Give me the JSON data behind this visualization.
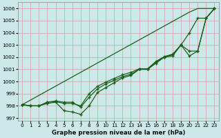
{
  "title": "Graphe pression niveau de la mer (hPa)",
  "xlabel_labels": [
    "0",
    "1",
    "2",
    "3",
    "4",
    "5",
    "6",
    "7",
    "8",
    "9",
    "10",
    "11",
    "12",
    "13",
    "14",
    "15",
    "16",
    "17",
    "18",
    "19",
    "20",
    "21",
    "22",
    "23"
  ],
  "ylim": [
    996.8,
    1006.5
  ],
  "yticks": [
    997,
    998,
    999,
    1000,
    1001,
    1002,
    1003,
    1004,
    1005,
    1006
  ],
  "bg_color": "#cce8e8",
  "grid_color_h": "#d4a0a0",
  "grid_color_v": "#d4a0a0",
  "line_color": "#1a5e1a",
  "line1": [
    998.1,
    998.0,
    998.0,
    998.2,
    998.3,
    997.6,
    997.5,
    997.3,
    998.0,
    999.1,
    999.5,
    999.9,
    1000.3,
    1000.5,
    1001.0,
    1001.0,
    1001.5,
    1002.0,
    1002.1,
    1003.0,
    1002.1,
    1002.5,
    1005.2,
    1006.0
  ],
  "line2": [
    998.1,
    998.0,
    998.0,
    998.3,
    998.4,
    998.3,
    998.3,
    997.9,
    998.7,
    999.4,
    999.8,
    1000.1,
    1000.4,
    1000.6,
    1001.0,
    1001.0,
    1001.6,
    1002.0,
    1002.2,
    1003.0,
    1002.5,
    1002.5,
    1005.2,
    1006.0
  ],
  "line3": [
    998.1,
    998.0,
    998.0,
    998.3,
    998.35,
    998.2,
    998.2,
    998.0,
    999.0,
    999.6,
    999.95,
    1000.25,
    1000.55,
    1000.75,
    1001.05,
    1001.05,
    1001.65,
    1002.05,
    1002.25,
    1003.0,
    1004.0,
    1005.2,
    1005.2,
    1006.0
  ],
  "line_straight": [
    998.1,
    998.48,
    998.86,
    999.24,
    999.62,
    1000.0,
    1000.38,
    1000.76,
    1001.14,
    1001.52,
    1001.9,
    1002.28,
    1002.66,
    1003.04,
    1003.42,
    1003.8,
    1004.18,
    1004.56,
    1004.94,
    1005.32,
    1005.7,
    1006.0,
    1006.0,
    1006.0
  ],
  "marker": "+",
  "marker_size": 3.5,
  "line_width": 0.9,
  "tick_fontsize": 5.2,
  "xlabel_fontsize": 6.2
}
